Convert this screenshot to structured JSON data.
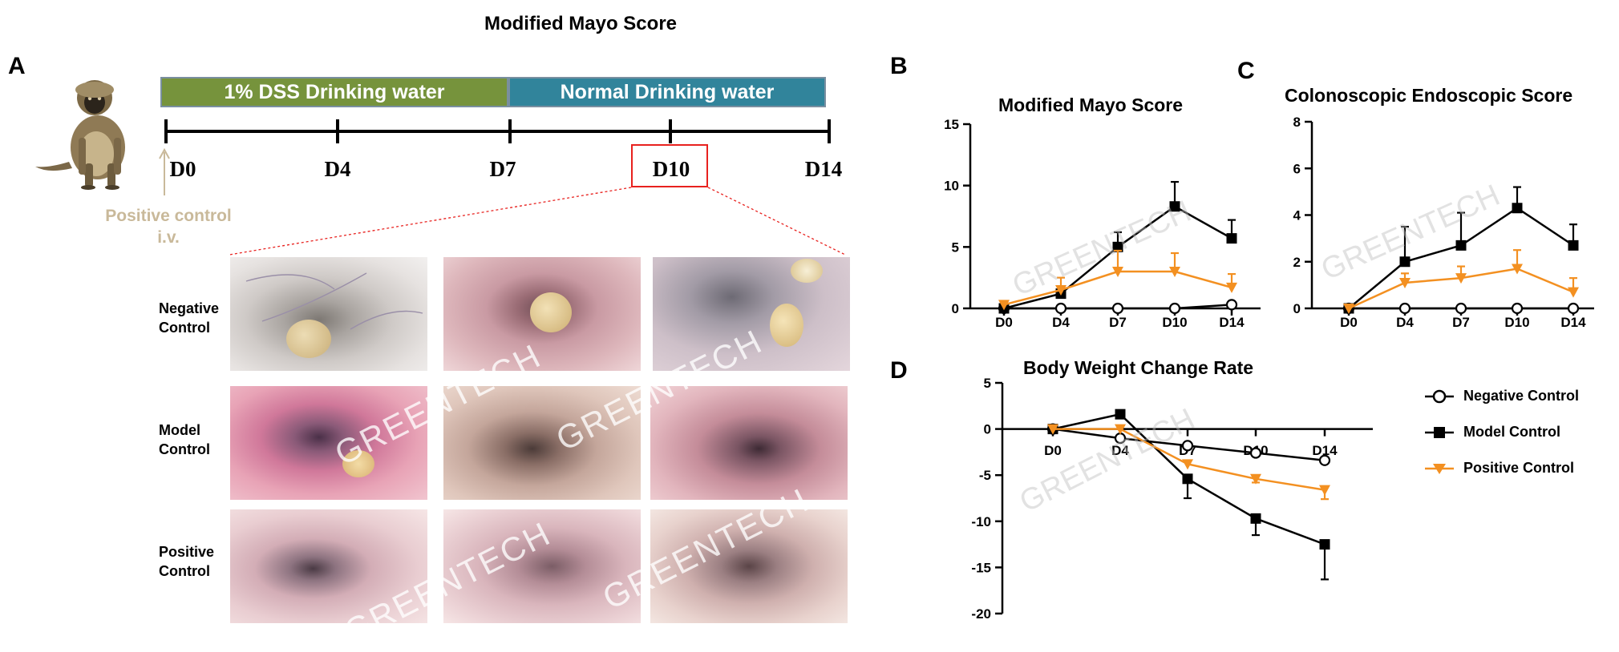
{
  "figure": {
    "title": "Modified Mayo Score",
    "panels": {
      "a": "A",
      "b": "B",
      "c": "C",
      "d": "D"
    }
  },
  "timeline": {
    "segments": [
      {
        "label": "1% DSS Drinking water",
        "color": "#76933c"
      },
      {
        "label": "Normal Drinking water",
        "color": "#31849b"
      }
    ],
    "days": [
      "D0",
      "D4",
      "D7",
      "D10",
      "D14"
    ],
    "highlighted_day": "D10",
    "highlight_color": "#e8211e",
    "annotation_line1": "Positive control",
    "annotation_line2": "i.v.",
    "annotation_color": "#c9b99a"
  },
  "endoscopy": {
    "rows": [
      {
        "line1": "Negative",
        "line2": "Control"
      },
      {
        "line1": "Model",
        "line2": "Control"
      },
      {
        "line1": "Positive",
        "line2": "Control"
      }
    ],
    "watermark": "GREENTECH"
  },
  "legend": {
    "items": [
      {
        "label": "Negative Control",
        "marker": "open-circle",
        "color": "#000000"
      },
      {
        "label": "Model Control",
        "marker": "square",
        "color": "#000000"
      },
      {
        "label": "Positive Control",
        "marker": "triangle-down",
        "color": "#f39021"
      }
    ]
  },
  "chart_data": [
    {
      "panel": "B",
      "type": "line",
      "title": "Modified Mayo Score",
      "categories": [
        "D0",
        "D4",
        "D7",
        "D10",
        "D14"
      ],
      "ylim": [
        0,
        15
      ],
      "yticks": [
        0,
        5,
        10,
        15
      ],
      "series": [
        {
          "name": "Negative Control",
          "values": [
            0,
            0,
            0,
            0,
            0.3
          ],
          "errors": [
            0,
            0,
            0,
            0,
            0
          ]
        },
        {
          "name": "Model Control",
          "values": [
            0,
            1.2,
            5,
            8.3,
            5.7
          ],
          "errors": [
            0,
            0.3,
            1.2,
            2,
            1.5
          ]
        },
        {
          "name": "Positive Control",
          "values": [
            0.3,
            1.5,
            3,
            3,
            1.7
          ],
          "errors": [
            0,
            1,
            1.7,
            1.5,
            1.1
          ]
        }
      ]
    },
    {
      "panel": "C",
      "type": "line",
      "title": "Colonoscopic Endoscopic Score",
      "categories": [
        "D0",
        "D4",
        "D7",
        "D10",
        "D14"
      ],
      "ylim": [
        0,
        8
      ],
      "yticks": [
        0,
        2,
        4,
        6,
        8
      ],
      "series": [
        {
          "name": "Negative Control",
          "values": [
            0,
            0,
            0,
            0,
            0
          ],
          "errors": [
            0,
            0,
            0,
            0,
            0
          ]
        },
        {
          "name": "Model Control",
          "values": [
            0,
            2,
            2.7,
            4.3,
            2.7
          ],
          "errors": [
            0,
            1.5,
            1.4,
            0.9,
            0.9
          ]
        },
        {
          "name": "Positive Control",
          "values": [
            0,
            1.1,
            1.3,
            1.7,
            0.7
          ],
          "errors": [
            0,
            0.4,
            0.5,
            0.8,
            0.6
          ]
        }
      ]
    },
    {
      "panel": "D",
      "type": "line",
      "title": "Body Weight Change Rate",
      "categories": [
        "D0",
        "D4",
        "D7",
        "D10",
        "D14"
      ],
      "ylim": [
        -20,
        5
      ],
      "yticks": [
        5,
        0,
        -5,
        -10,
        -15,
        -20
      ],
      "series": [
        {
          "name": "Negative Control",
          "values": [
            0,
            -1,
            -1.8,
            -2.6,
            -3.4
          ],
          "errors": [
            0,
            0,
            0,
            0,
            0
          ]
        },
        {
          "name": "Model Control",
          "values": [
            0,
            1.6,
            -5.4,
            -9.7,
            -12.5
          ],
          "errors": [
            0,
            0,
            2.1,
            1.8,
            3.8
          ]
        },
        {
          "name": "Positive Control",
          "values": [
            0,
            0,
            -3.8,
            -5.4,
            -6.6
          ],
          "errors": [
            0,
            0,
            0,
            0.4,
            1
          ]
        }
      ]
    }
  ]
}
